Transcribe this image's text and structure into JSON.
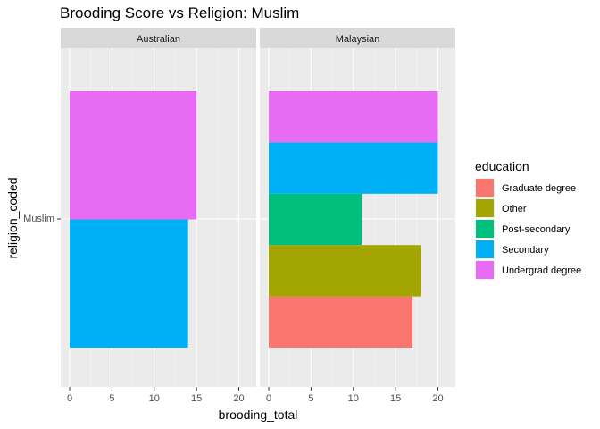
{
  "chart_data": {
    "type": "bar",
    "orientation": "horizontal",
    "layout": "stacked",
    "title": "Brooding Score vs Religion: Muslim",
    "xlabel": "brooding_total",
    "ylabel": "religion_coded",
    "category": "Muslim",
    "xlim": [
      0,
      21
    ],
    "xticks": [
      0,
      5,
      10,
      15,
      20
    ],
    "grid": true,
    "legend": {
      "title": "education",
      "position": "right",
      "entries": [
        {
          "name": "Graduate degree",
          "color": "#F8766D"
        },
        {
          "name": "Other",
          "color": "#A3A500"
        },
        {
          "name": "Post-secondary",
          "color": "#00BF7D"
        },
        {
          "name": "Secondary",
          "color": "#00B0F6"
        },
        {
          "name": "Undergrad degree",
          "color": "#E76BF3"
        }
      ]
    },
    "panels": [
      {
        "facet": "Australian",
        "bars": [
          {
            "education": "Secondary",
            "value": 14
          },
          {
            "education": "Undergrad degree",
            "value": 15
          }
        ]
      },
      {
        "facet": "Malaysian",
        "bars": [
          {
            "education": "Graduate degree",
            "value": 17
          },
          {
            "education": "Other",
            "value": 18
          },
          {
            "education": "Post-secondary",
            "value": 11
          },
          {
            "education": "Secondary",
            "value": 20
          },
          {
            "education": "Undergrad degree",
            "value": 20
          }
        ]
      }
    ]
  }
}
